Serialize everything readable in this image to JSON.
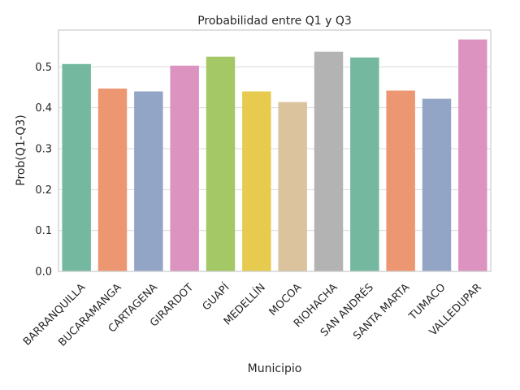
{
  "chart_data": {
    "type": "bar",
    "title": "Probabilidad entre Q1 y Q3",
    "xlabel": "Municipio",
    "ylabel": "Prob(Q1-Q3)",
    "ylim": [
      0,
      0.59
    ],
    "yticks": [
      "0.0",
      "0.1",
      "0.2",
      "0.3",
      "0.4",
      "0.5"
    ],
    "grid": "horizontal",
    "categories": [
      "BARRANQUILLA",
      "BUCARAMANGA",
      "CARTAGENA",
      "GIRARDOT",
      "GUAPÍ",
      "MEDELLÍN",
      "MOCOA",
      "RIOHACHA",
      "SAN ANDRÉS",
      "SANTA MARTA",
      "TUMACO",
      "VALLEDUPAR"
    ],
    "values": [
      0.507,
      0.447,
      0.44,
      0.503,
      0.525,
      0.44,
      0.414,
      0.537,
      0.523,
      0.442,
      0.422,
      0.567
    ],
    "colors": [
      "#73b89f",
      "#ec9772",
      "#93a5c6",
      "#dc93c0",
      "#a5c866",
      "#e7cb4e",
      "#dbc49d",
      "#b3b3b3",
      "#73b89f",
      "#ec9772",
      "#93a5c6",
      "#dc93c0"
    ]
  }
}
